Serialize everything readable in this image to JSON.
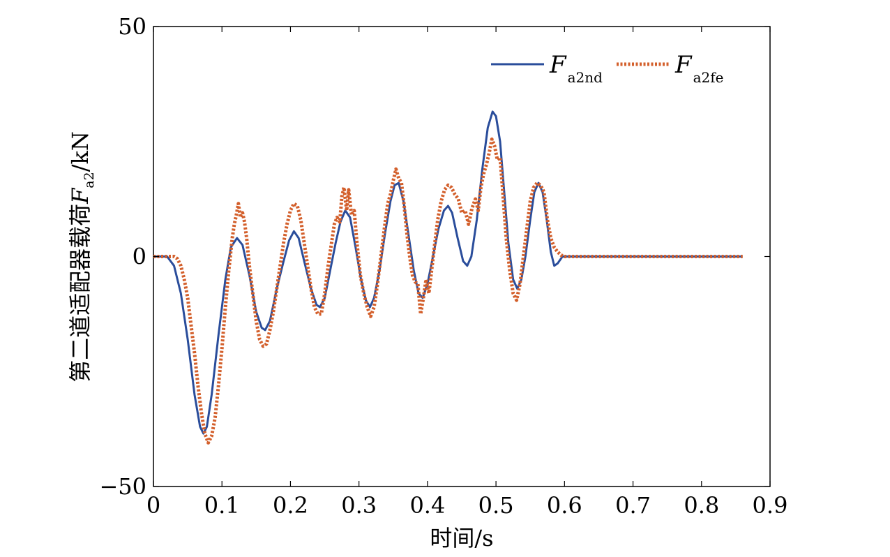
{
  "chart_data": {
    "type": "line",
    "xlabel": "时间/s",
    "ylabel": {
      "prefix": "第二道适配器载荷",
      "var": "F",
      "sub": "a2",
      "unit": "/kN"
    },
    "xlim": [
      0,
      0.9
    ],
    "ylim": [
      -50,
      50
    ],
    "xticks": [
      "0",
      "0.1",
      "0.2",
      "0.3",
      "0.4",
      "0.5",
      "0.6",
      "0.7",
      "0.8",
      "0.9"
    ],
    "yticks": [
      "−50",
      "0",
      "50"
    ],
    "xtick_values": [
      0,
      0.1,
      0.2,
      0.3,
      0.4,
      0.5,
      0.6,
      0.7,
      0.8,
      0.9
    ],
    "ytick_values": [
      -50,
      0,
      50
    ],
    "grid": false,
    "legend_position": "top-right",
    "series": [
      {
        "name": "F",
        "sub": "a2nd",
        "color": "#2a4d9b",
        "style": "solid",
        "points": [
          [
            0,
            0
          ],
          [
            0.02,
            0
          ],
          [
            0.03,
            -2
          ],
          [
            0.04,
            -8
          ],
          [
            0.05,
            -18
          ],
          [
            0.06,
            -30
          ],
          [
            0.068,
            -37
          ],
          [
            0.073,
            -38.5
          ],
          [
            0.078,
            -37
          ],
          [
            0.085,
            -30
          ],
          [
            0.095,
            -17
          ],
          [
            0.105,
            -5
          ],
          [
            0.113,
            2
          ],
          [
            0.122,
            4
          ],
          [
            0.13,
            2.5
          ],
          [
            0.14,
            -4
          ],
          [
            0.15,
            -12
          ],
          [
            0.158,
            -15.5
          ],
          [
            0.163,
            -16
          ],
          [
            0.17,
            -14
          ],
          [
            0.18,
            -7
          ],
          [
            0.19,
            -1
          ],
          [
            0.198,
            3.5
          ],
          [
            0.205,
            5.5
          ],
          [
            0.212,
            4
          ],
          [
            0.22,
            -1
          ],
          [
            0.23,
            -7
          ],
          [
            0.238,
            -10.5
          ],
          [
            0.243,
            -11
          ],
          [
            0.25,
            -9
          ],
          [
            0.258,
            -3
          ],
          [
            0.266,
            3
          ],
          [
            0.273,
            7.5
          ],
          [
            0.28,
            10
          ],
          [
            0.287,
            8.5
          ],
          [
            0.295,
            2
          ],
          [
            0.303,
            -5
          ],
          [
            0.31,
            -9.5
          ],
          [
            0.316,
            -11
          ],
          [
            0.322,
            -9
          ],
          [
            0.33,
            -3
          ],
          [
            0.338,
            5
          ],
          [
            0.346,
            12
          ],
          [
            0.352,
            15.5
          ],
          [
            0.358,
            16
          ],
          [
            0.365,
            12
          ],
          [
            0.372,
            5
          ],
          [
            0.38,
            -3
          ],
          [
            0.387,
            -8
          ],
          [
            0.393,
            -9
          ],
          [
            0.4,
            -6
          ],
          [
            0.408,
            0
          ],
          [
            0.416,
            6
          ],
          [
            0.424,
            10
          ],
          [
            0.43,
            11
          ],
          [
            0.436,
            9.5
          ],
          [
            0.444,
            4
          ],
          [
            0.452,
            -1
          ],
          [
            0.458,
            -2
          ],
          [
            0.464,
            0
          ],
          [
            0.472,
            8
          ],
          [
            0.48,
            19
          ],
          [
            0.488,
            28
          ],
          [
            0.495,
            31.5
          ],
          [
            0.5,
            30.5
          ],
          [
            0.506,
            25
          ],
          [
            0.512,
            14
          ],
          [
            0.518,
            3
          ],
          [
            0.525,
            -5
          ],
          [
            0.531,
            -7
          ],
          [
            0.537,
            -5
          ],
          [
            0.543,
            0
          ],
          [
            0.55,
            8
          ],
          [
            0.556,
            14
          ],
          [
            0.562,
            16
          ],
          [
            0.568,
            14
          ],
          [
            0.574,
            8
          ],
          [
            0.58,
            1
          ],
          [
            0.585,
            -2
          ],
          [
            0.59,
            -1.5
          ],
          [
            0.597,
            0
          ],
          [
            0.62,
            0
          ],
          [
            0.86,
            0
          ]
        ]
      },
      {
        "name": "F",
        "sub": "a2fe",
        "color": "#d35f2b",
        "style": "dotted",
        "points": [
          [
            0,
            0
          ],
          [
            0.03,
            0
          ],
          [
            0.035,
            -0.5
          ],
          [
            0.04,
            -2
          ],
          [
            0.045,
            -5
          ],
          [
            0.05,
            -9
          ],
          [
            0.055,
            -15
          ],
          [
            0.06,
            -21
          ],
          [
            0.065,
            -28
          ],
          [
            0.07,
            -34
          ],
          [
            0.075,
            -38.5
          ],
          [
            0.08,
            -40.5
          ],
          [
            0.085,
            -39
          ],
          [
            0.09,
            -35
          ],
          [
            0.095,
            -28
          ],
          [
            0.1,
            -20
          ],
          [
            0.105,
            -11
          ],
          [
            0.11,
            -3
          ],
          [
            0.115,
            4
          ],
          [
            0.118,
            7
          ],
          [
            0.121,
            9
          ],
          [
            0.124,
            11.5
          ],
          [
            0.127,
            8.5
          ],
          [
            0.13,
            9.5
          ],
          [
            0.133,
            7.5
          ],
          [
            0.136,
            4
          ],
          [
            0.14,
            -2
          ],
          [
            0.145,
            -8
          ],
          [
            0.15,
            -14
          ],
          [
            0.155,
            -18
          ],
          [
            0.16,
            -19.5
          ],
          [
            0.165,
            -19
          ],
          [
            0.17,
            -16
          ],
          [
            0.175,
            -12
          ],
          [
            0.18,
            -7
          ],
          [
            0.185,
            -2
          ],
          [
            0.19,
            3
          ],
          [
            0.195,
            7
          ],
          [
            0.2,
            10
          ],
          [
            0.205,
            11.5
          ],
          [
            0.21,
            11
          ],
          [
            0.215,
            8
          ],
          [
            0.22,
            3
          ],
          [
            0.225,
            -2
          ],
          [
            0.23,
            -7
          ],
          [
            0.235,
            -11
          ],
          [
            0.24,
            -12.5
          ],
          [
            0.245,
            -12.5
          ],
          [
            0.25,
            -8
          ],
          [
            0.255,
            -2
          ],
          [
            0.26,
            3
          ],
          [
            0.264,
            7
          ],
          [
            0.268,
            8.5
          ],
          [
            0.272,
            7.5
          ],
          [
            0.275,
            13
          ],
          [
            0.278,
            15
          ],
          [
            0.282,
            10
          ],
          [
            0.285,
            14.5
          ],
          [
            0.289,
            9
          ],
          [
            0.293,
            10
          ],
          [
            0.297,
            3
          ],
          [
            0.302,
            -4
          ],
          [
            0.307,
            -8
          ],
          [
            0.312,
            -11
          ],
          [
            0.317,
            -13
          ],
          [
            0.322,
            -11
          ],
          [
            0.327,
            -6
          ],
          [
            0.332,
            0
          ],
          [
            0.337,
            6
          ],
          [
            0.342,
            11.5
          ],
          [
            0.346,
            13.5
          ],
          [
            0.35,
            16.5
          ],
          [
            0.354,
            19
          ],
          [
            0.358,
            17
          ],
          [
            0.362,
            16
          ],
          [
            0.366,
            11
          ],
          [
            0.37,
            5
          ],
          [
            0.374,
            0
          ],
          [
            0.378,
            -4
          ],
          [
            0.382,
            -5.5
          ],
          [
            0.386,
            -6
          ],
          [
            0.39,
            -12.5
          ],
          [
            0.394,
            -9
          ],
          [
            0.398,
            -5
          ],
          [
            0.402,
            -8
          ],
          [
            0.406,
            -3
          ],
          [
            0.41,
            2
          ],
          [
            0.415,
            8
          ],
          [
            0.42,
            12
          ],
          [
            0.425,
            14.5
          ],
          [
            0.43,
            15.5
          ],
          [
            0.435,
            15
          ],
          [
            0.44,
            13.5
          ],
          [
            0.445,
            12.5
          ],
          [
            0.45,
            9.5
          ],
          [
            0.455,
            10
          ],
          [
            0.46,
            7
          ],
          [
            0.465,
            10.5
          ],
          [
            0.47,
            12.5
          ],
          [
            0.474,
            10
          ],
          [
            0.478,
            15
          ],
          [
            0.482,
            18
          ],
          [
            0.486,
            20
          ],
          [
            0.49,
            22.5
          ],
          [
            0.494,
            25.5
          ],
          [
            0.498,
            24
          ],
          [
            0.502,
            21
          ],
          [
            0.506,
            21.5
          ],
          [
            0.51,
            14
          ],
          [
            0.515,
            4
          ],
          [
            0.52,
            -3
          ],
          [
            0.525,
            -8
          ],
          [
            0.53,
            -9.5
          ],
          [
            0.535,
            -6
          ],
          [
            0.54,
            0
          ],
          [
            0.545,
            6
          ],
          [
            0.55,
            12
          ],
          [
            0.555,
            15
          ],
          [
            0.56,
            16
          ],
          [
            0.565,
            15.5
          ],
          [
            0.57,
            14
          ],
          [
            0.575,
            8
          ],
          [
            0.58,
            4
          ],
          [
            0.585,
            2
          ],
          [
            0.59,
            1
          ],
          [
            0.595,
            0.3
          ],
          [
            0.6,
            0
          ],
          [
            0.86,
            0
          ]
        ]
      }
    ]
  }
}
